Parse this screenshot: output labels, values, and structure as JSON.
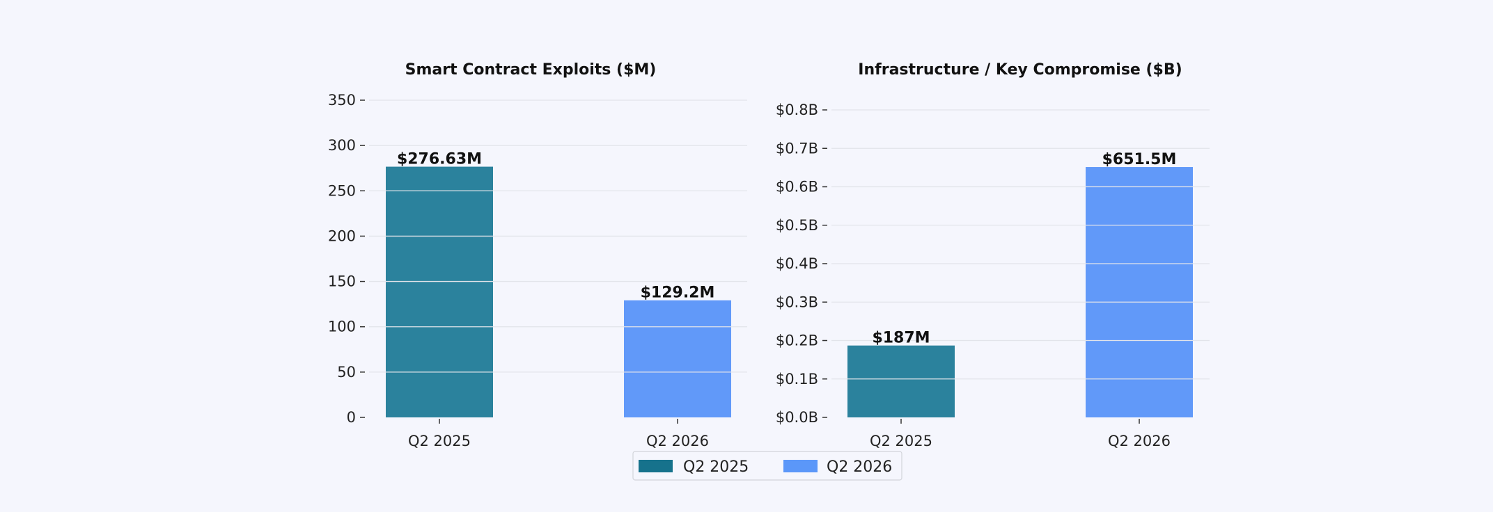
{
  "colors": {
    "q2_2025": "#2b829d",
    "q2_2026": "#6199f9",
    "legend_q2_2025": "#16728c",
    "legend_q2_2026": "#5b97f9",
    "grid": "#e2e4ea",
    "background": "#f5f6fd"
  },
  "legend": {
    "placement": "bottom-center",
    "items": [
      "Q2 2025",
      "Q2 2026"
    ]
  },
  "chart_data": [
    {
      "type": "bar",
      "title": "Smart Contract Exploits ($M)",
      "categories": [
        "Q2 2025",
        "Q2 2026"
      ],
      "values": [
        276.63,
        129.2
      ],
      "data_labels": [
        "$276.63M",
        "$129.2M"
      ],
      "ylim": [
        0,
        350
      ],
      "yticks": [
        0,
        50,
        100,
        150,
        200,
        250,
        300,
        350
      ],
      "ytick_labels": [
        "0",
        "50",
        "100",
        "150",
        "200",
        "250",
        "300",
        "350"
      ],
      "grid": true,
      "xlabel": "",
      "ylabel": ""
    },
    {
      "type": "bar",
      "title": "Infrastructure / Key Compromise ($B)",
      "categories": [
        "Q2 2025",
        "Q2 2026"
      ],
      "values": [
        0.187,
        0.6515
      ],
      "data_labels": [
        "$187M",
        "$651.5M"
      ],
      "ylim": [
        0,
        0.8
      ],
      "yticks": [
        0,
        0.1,
        0.2,
        0.3,
        0.4,
        0.5,
        0.6,
        0.7,
        0.8
      ],
      "ytick_labels": [
        "$0.0B",
        "$0.1B",
        "$0.2B",
        "$0.3B",
        "$0.4B",
        "$0.5B",
        "$0.6B",
        "$0.7B",
        "$0.8B"
      ],
      "grid": true,
      "xlabel": "",
      "ylabel": ""
    }
  ]
}
